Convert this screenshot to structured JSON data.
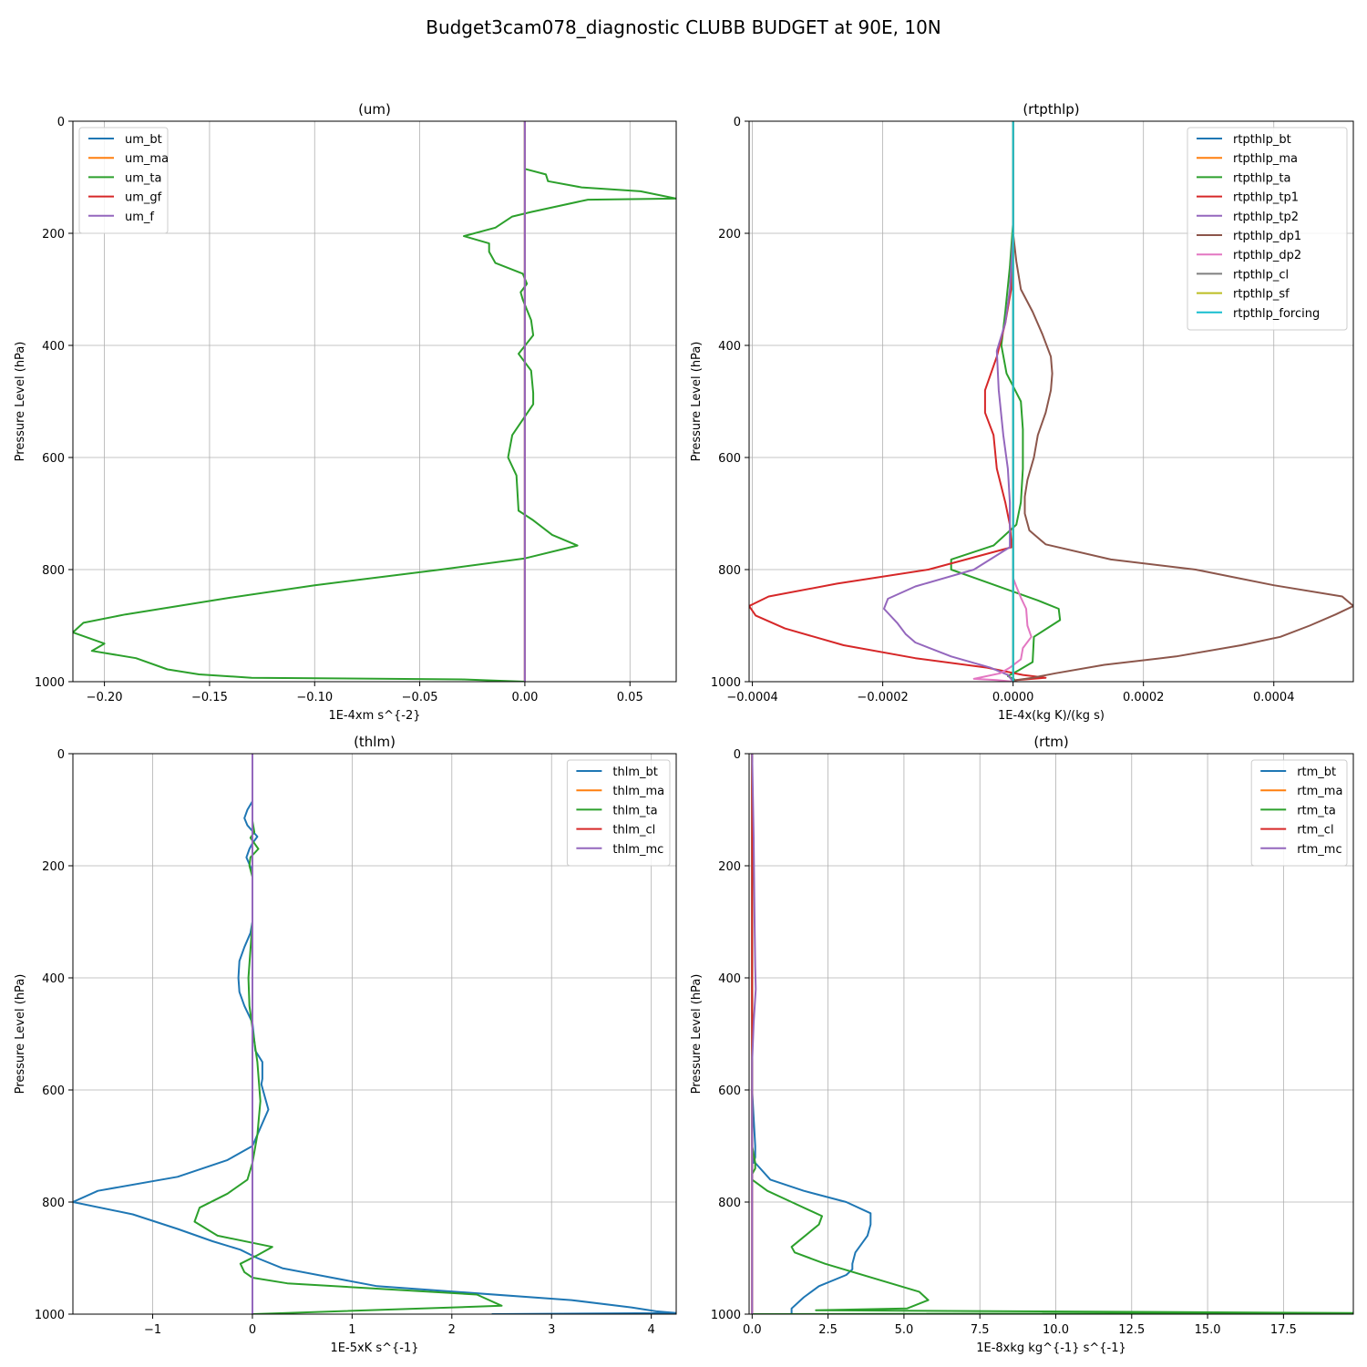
{
  "figure": {
    "title": "Budget3cam078_diagnostic CLUBB BUDGET at 90E, 10N"
  },
  "chart_data": [
    {
      "type": "line",
      "title": "(um)",
      "xlabel": "1E-4xm s^{-2}",
      "ylabel": "Pressure Level (hPa)",
      "xlim": [
        -0.215,
        0.072
      ],
      "ylim": [
        1000,
        0
      ],
      "xticks": [
        -0.2,
        -0.15,
        -0.1,
        -0.05,
        0.0,
        0.05
      ],
      "xtick_labels": [
        "−0.20",
        "−0.15",
        "−0.10",
        "−0.05",
        "0.00",
        "0.05"
      ],
      "yticks": [
        0,
        200,
        400,
        600,
        800,
        1000
      ],
      "ytick_labels": [
        "0",
        "200",
        "400",
        "600",
        "800",
        "1000"
      ],
      "grid": true,
      "legend_position": "top-left",
      "series": [
        {
          "name": "um_bt",
          "color": "#1f77b4",
          "x": [
            0,
            0
          ],
          "y": [
            0,
            1000
          ]
        },
        {
          "name": "um_ma",
          "color": "#ff7f0e",
          "x": [
            0,
            0
          ],
          "y": [
            0,
            1000
          ]
        },
        {
          "name": "um_ta",
          "color": "#2ca02c",
          "x": [
            0,
            0,
            0.01,
            0.011,
            0.027,
            0.055,
            0.072,
            0.03,
            0.003,
            -0.006,
            -0.014,
            -0.029,
            -0.017,
            -0.017,
            -0.014,
            -0.001,
            0.001,
            -0.002,
            -0.001,
            0.003,
            0.004,
            -0.003,
            0.003,
            0.004,
            0.004,
            -0.006,
            -0.008,
            -0.004,
            -0.003,
            0.004,
            0.013,
            0.025,
            0,
            -0.04,
            -0.1,
            -0.14,
            -0.19,
            -0.21,
            -0.215,
            -0.2,
            -0.206,
            -0.185,
            -0.17,
            -0.155,
            -0.13,
            -0.03,
            0
          ],
          "y": [
            0,
            85,
            95,
            107,
            118,
            125,
            138,
            140,
            162,
            170,
            190,
            205,
            218,
            233,
            253,
            272,
            290,
            305,
            318,
            355,
            382,
            415,
            445,
            485,
            505,
            560,
            600,
            632,
            695,
            712,
            738,
            757,
            780,
            800,
            828,
            850,
            880,
            895,
            912,
            932,
            945,
            958,
            978,
            987,
            993,
            996,
            1000
          ]
        },
        {
          "name": "um_gf",
          "color": "#d62728",
          "x": [
            0,
            0
          ],
          "y": [
            0,
            1000
          ]
        },
        {
          "name": "um_f",
          "color": "#9467bd",
          "x": [
            0,
            0
          ],
          "y": [
            0,
            1000
          ]
        }
      ]
    },
    {
      "type": "line",
      "title": "(rtpthlp)",
      "xlabel": "1E-4x(kg K)/(kg s)",
      "ylabel": "Pressure Level (hPa)",
      "xlim": [
        -0.000405,
        0.000522
      ],
      "ylim": [
        1000,
        0
      ],
      "xticks": [
        -0.0004,
        -0.0002,
        0,
        0.0002,
        0.0004
      ],
      "xtick_labels": [
        "−0.0004",
        "−0.0002",
        "0.0000",
        "0.0002",
        "0.0004"
      ],
      "yticks": [
        0,
        200,
        400,
        600,
        800,
        1000
      ],
      "ytick_labels": [
        "0",
        "200",
        "400",
        "600",
        "800",
        "1000"
      ],
      "grid": true,
      "legend_position": "top-right",
      "series": [
        {
          "name": "rtpthlp_bt",
          "color": "#1f77b4",
          "x": [
            0,
            0
          ],
          "y": [
            0,
            1000
          ]
        },
        {
          "name": "rtpthlp_ma",
          "color": "#ff7f0e",
          "x": [
            0,
            0
          ],
          "y": [
            0,
            1000
          ]
        },
        {
          "name": "rtpthlp_ta",
          "color": "#2ca02c",
          "x": [
            0,
            0,
            -5e-06,
            -1.2e-05,
            -1.8e-05,
            -1e-05,
            1.2e-05,
            1.5e-05,
            1.5e-05,
            1.2e-05,
            5e-06,
            -3e-05,
            -9.5e-05,
            -9.5e-05,
            3.8e-05,
            7e-05,
            7.2e-05,
            3.2e-05,
            3e-05,
            8e-06,
            -8e-06,
            2e-06,
            0
          ],
          "y": [
            0,
            180,
            260,
            340,
            400,
            450,
            500,
            550,
            620,
            680,
            720,
            757,
            782,
            800,
            855,
            870,
            890,
            920,
            965,
            980,
            990,
            996,
            1000
          ]
        },
        {
          "name": "rtpthlp_tp1",
          "color": "#d62728",
          "x": [
            0,
            0,
            -3e-06,
            -1.2e-05,
            -2.5e-05,
            -4.3e-05,
            -4.3e-05,
            -3e-05,
            -2.5e-05,
            -1.2e-05,
            -5e-06,
            -2e-06,
            -0.00013,
            -0.00027,
            -0.000375,
            -0.000405,
            -0.000395,
            -0.00035,
            -0.00026,
            -0.00015,
            -4e-05,
            1.5e-05,
            5e-05,
            5e-06,
            0
          ],
          "y": [
            0,
            200,
            300,
            360,
            420,
            480,
            520,
            560,
            620,
            680,
            720,
            760,
            800,
            825,
            848,
            865,
            882,
            905,
            935,
            958,
            975,
            988,
            993,
            997,
            1000
          ]
        },
        {
          "name": "rtpthlp_tp2",
          "color": "#9467bd",
          "x": [
            0,
            0,
            -5e-06,
            -1.2e-05,
            -2.5e-05,
            -2.2e-05,
            -1.5e-05,
            -8e-06,
            -5e-06,
            -5e-06,
            -6e-05,
            -0.00015,
            -0.000192,
            -0.000198,
            -0.000178,
            -0.000165,
            -0.00015,
            -9.5e-05,
            -3.5e-05,
            -8e-06,
            0
          ],
          "y": [
            0,
            200,
            300,
            360,
            410,
            480,
            560,
            620,
            680,
            760,
            800,
            830,
            852,
            870,
            895,
            915,
            930,
            955,
            975,
            988,
            1000
          ]
        },
        {
          "name": "rtpthlp_dp1",
          "color": "#8c564b",
          "x": [
            0,
            0,
            5e-06,
            1.2e-05,
            3e-05,
            4.5e-05,
            5.8e-05,
            6e-05,
            5.8e-05,
            5e-05,
            3.8e-05,
            3.2e-05,
            2.2e-05,
            1.8e-05,
            1.8e-05,
            2.5e-05,
            5e-05,
            0.00015,
            0.00028,
            0.0004,
            0.000505,
            0.000522,
            0.000495,
            0.000455,
            0.00041,
            0.00035,
            0.00025,
            0.00014,
            6.5e-05,
            3e-05,
            5e-06,
            0
          ],
          "y": [
            0,
            200,
            250,
            300,
            340,
            380,
            420,
            450,
            480,
            520,
            560,
            600,
            640,
            670,
            700,
            730,
            755,
            782,
            800,
            828,
            848,
            865,
            880,
            900,
            920,
            935,
            955,
            970,
            985,
            993,
            997,
            1000
          ]
        },
        {
          "name": "rtpthlp_dp2",
          "color": "#e377c2",
          "x": [
            0,
            0,
            5e-06,
            1.2e-05,
            2e-05,
            2.2e-05,
            2.8e-05,
            1.5e-05,
            1.2e-05,
            -5e-06,
            -2e-05,
            -6e-05,
            -2.5e-05,
            0
          ],
          "y": [
            0,
            815,
            830,
            850,
            870,
            900,
            920,
            940,
            960,
            975,
            985,
            995,
            997,
            1000
          ]
        },
        {
          "name": "rtpthlp_cl",
          "color": "#7f7f7f",
          "x": [
            0,
            0
          ],
          "y": [
            0,
            1000
          ]
        },
        {
          "name": "rtpthlp_sf",
          "color": "#bcbd22",
          "x": [
            0,
            0
          ],
          "y": [
            0,
            1000
          ]
        },
        {
          "name": "rtpthlp_forcing",
          "color": "#17becf",
          "x": [
            0,
            0
          ],
          "y": [
            0,
            1000
          ]
        }
      ]
    },
    {
      "type": "line",
      "title": "(thlm)",
      "xlabel": "1E-5xK s^{-1}",
      "ylabel": "Pressure Level (hPa)",
      "xlim": [
        -1.8,
        4.25
      ],
      "ylim": [
        1000,
        0
      ],
      "xticks": [
        -1,
        0,
        1,
        2,
        3,
        4
      ],
      "xtick_labels": [
        "−1",
        "0",
        "1",
        "2",
        "3",
        "4"
      ],
      "yticks": [
        0,
        200,
        400,
        600,
        800,
        1000
      ],
      "ytick_labels": [
        "0",
        "200",
        "400",
        "600",
        "800",
        "1000"
      ],
      "grid": true,
      "legend_position": "top-right",
      "series": [
        {
          "name": "thlm_bt",
          "color": "#1f77b4",
          "x": [
            0,
            0,
            -0.05,
            -0.08,
            -0.05,
            0.05,
            0.0,
            -0.03,
            -0.06,
            0,
            0.0,
            -0.02,
            -0.08,
            -0.13,
            -0.14,
            -0.13,
            -0.08,
            0,
            0.03,
            0.1,
            0.1,
            0.09,
            0.16,
            0.05,
            0,
            -0.25,
            -0.75,
            -1.55,
            -1.8,
            -1.2,
            -0.75,
            -0.4,
            -0.12,
            0.05,
            0.3,
            0.8,
            1.25,
            3.2,
            3.8,
            4.05,
            4.25,
            2.4
          ],
          "y": [
            0,
            85,
            100,
            115,
            128,
            148,
            160,
            170,
            185,
            210,
            300,
            320,
            345,
            370,
            400,
            425,
            450,
            480,
            530,
            550,
            580,
            590,
            635,
            680,
            700,
            725,
            755,
            780,
            800,
            822,
            848,
            870,
            885,
            900,
            918,
            935,
            950,
            975,
            988,
            995,
            998,
            1000
          ]
        },
        {
          "name": "thlm_ma",
          "color": "#ff7f0e",
          "x": [
            0,
            0
          ],
          "y": [
            0,
            1000
          ]
        },
        {
          "name": "thlm_ta",
          "color": "#2ca02c",
          "x": [
            0,
            0,
            0.02,
            -0.02,
            0.06,
            -0.02,
            -0.03,
            0,
            0,
            -0.02,
            -0.04,
            -0.03,
            0.0,
            0.05,
            0.08,
            0.05,
            0.0,
            -0.05,
            -0.25,
            -0.53,
            -0.58,
            -0.35,
            0.2,
            0.05,
            -0.12,
            -0.08,
            0.0,
            0.35,
            2.25,
            2.5,
            0.0
          ],
          "y": [
            0,
            120,
            140,
            150,
            170,
            185,
            200,
            220,
            300,
            350,
            400,
            450,
            490,
            550,
            620,
            680,
            730,
            760,
            785,
            810,
            835,
            860,
            880,
            895,
            910,
            925,
            935,
            945,
            965,
            985,
            1000
          ]
        },
        {
          "name": "thlm_cl",
          "color": "#d62728",
          "x": [
            0,
            0
          ],
          "y": [
            0,
            1000
          ]
        },
        {
          "name": "thlm_mc",
          "color": "#9467bd",
          "x": [
            0,
            0
          ],
          "y": [
            0,
            1000
          ]
        }
      ]
    },
    {
      "type": "line",
      "title": "(rtm)",
      "xlabel": "1E-8xkg kg^{-1} s^{-1}",
      "ylabel": "Pressure Level (hPa)",
      "xlim": [
        -0.1,
        19.8
      ],
      "ylim": [
        1000,
        0
      ],
      "xticks": [
        0,
        2.5,
        5,
        7.5,
        10,
        12.5,
        15,
        17.5
      ],
      "xtick_labels": [
        "0.0",
        "2.5",
        "5.0",
        "7.5",
        "10.0",
        "12.5",
        "15.0",
        "17.5"
      ],
      "yticks": [
        0,
        200,
        400,
        600,
        800,
        1000
      ],
      "ytick_labels": [
        "0",
        "200",
        "400",
        "600",
        "800",
        "1000"
      ],
      "grid": true,
      "legend_position": "top-right",
      "series": [
        {
          "name": "rtm_bt",
          "color": "#1f77b4",
          "x": [
            0,
            0,
            0.05,
            0.1,
            0.1,
            0.05,
            0,
            0.1,
            0.6,
            1.7,
            3.1,
            3.9,
            3.9,
            3.8,
            3.4,
            3.3,
            3.3,
            3.1,
            2.2,
            1.7,
            1.3,
            1.3
          ],
          "y": [
            0,
            600,
            650,
            700,
            720,
            730,
            720,
            730,
            760,
            780,
            800,
            820,
            840,
            860,
            890,
            910,
            920,
            930,
            950,
            970,
            990,
            1000
          ]
        },
        {
          "name": "rtm_ma",
          "color": "#ff7f0e",
          "x": [
            0,
            0
          ],
          "y": [
            0,
            1000
          ]
        },
        {
          "name": "rtm_ta",
          "color": "#2ca02c",
          "x": [
            0,
            0,
            0.1,
            0.1,
            0.0,
            0.0,
            0.5,
            1.3,
            2.3,
            2.2,
            1.3,
            1.4,
            2.4,
            5.5,
            5.8,
            5.1,
            2.1,
            19.8,
            0
          ],
          "y": [
            0,
            700,
            730,
            740,
            750,
            760,
            780,
            800,
            825,
            840,
            880,
            890,
            910,
            960,
            975,
            990,
            993,
            998,
            1000
          ]
        },
        {
          "name": "rtm_cl",
          "color": "#d62728",
          "x": [
            0,
            0
          ],
          "y": [
            0,
            1000
          ]
        },
        {
          "name": "rtm_mc",
          "color": "#9467bd",
          "x": [
            0,
            0.05,
            0.08,
            0.1,
            0.12,
            0.05,
            0,
            0
          ],
          "y": [
            0,
            150,
            300,
            380,
            420,
            480,
            550,
            1000
          ]
        }
      ]
    }
  ]
}
